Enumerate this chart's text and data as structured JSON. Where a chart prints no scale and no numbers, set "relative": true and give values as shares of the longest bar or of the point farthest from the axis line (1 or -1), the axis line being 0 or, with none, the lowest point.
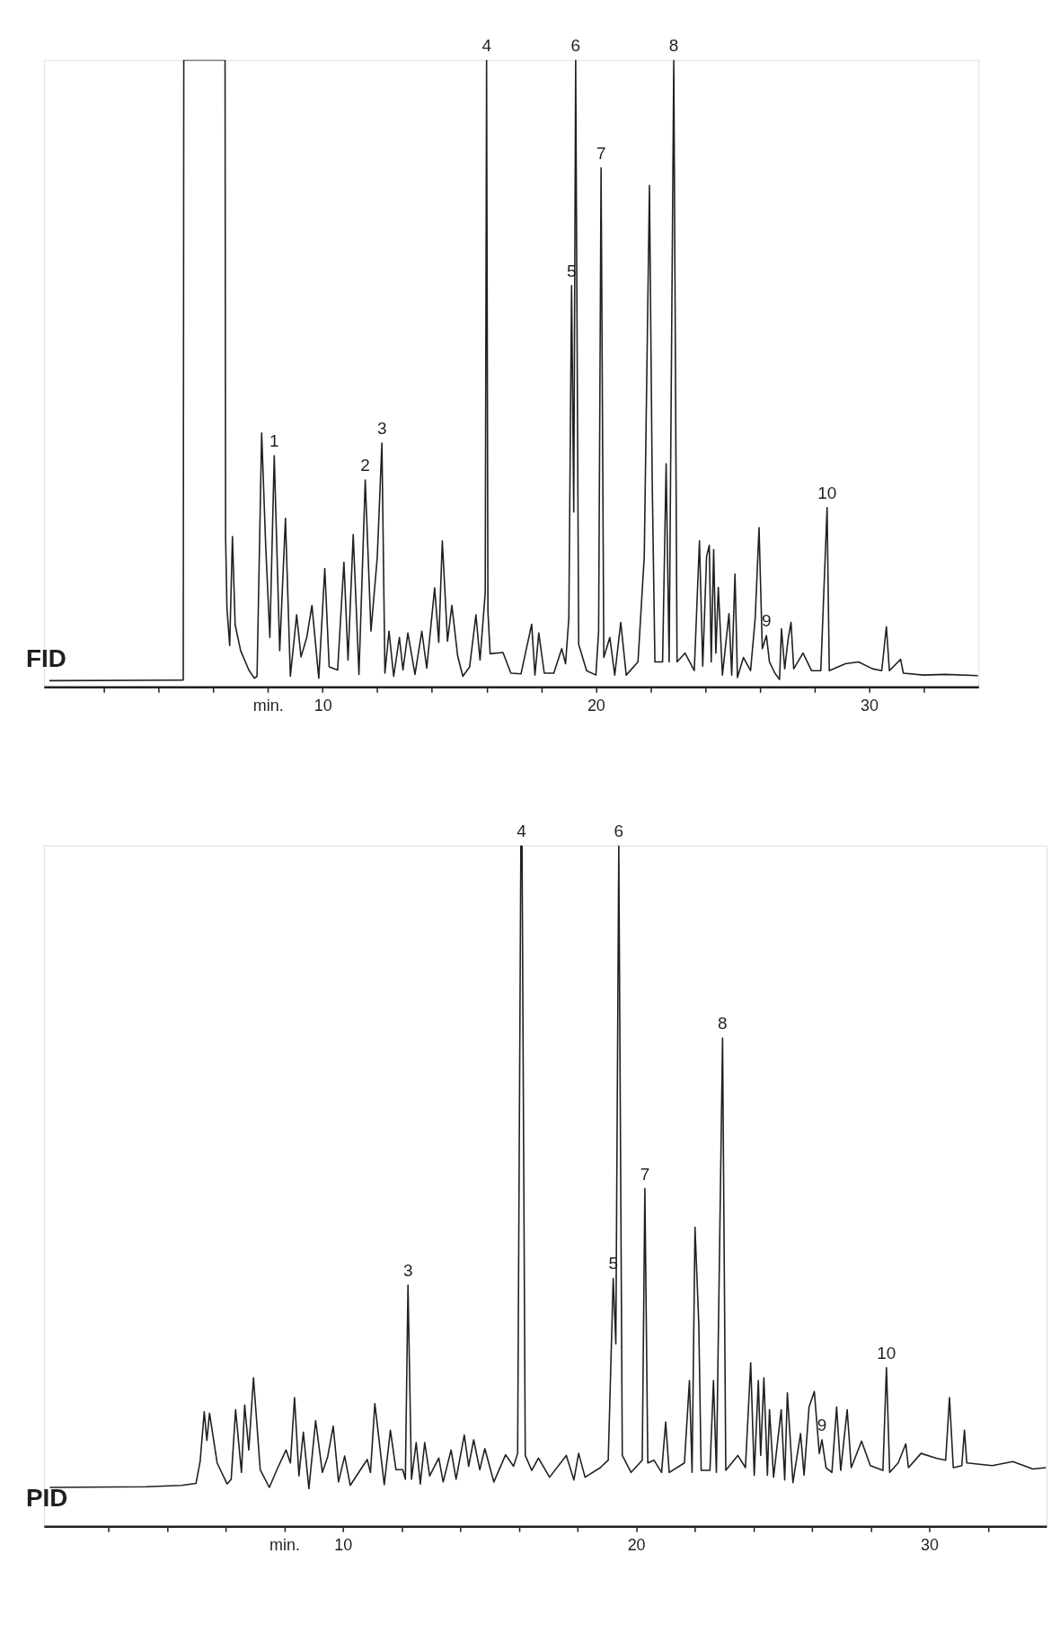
{
  "chart_data": [
    {
      "type": "line",
      "title": "FID",
      "relative": true,
      "color": "#231f20",
      "grid": false,
      "line_style": "solid",
      "marker": "none",
      "xlim": [
        -0.2,
        34
      ],
      "xticks": [
        {
          "value": 2,
          "label": null
        },
        {
          "value": 4,
          "label": null
        },
        {
          "value": 6,
          "label": null
        },
        {
          "value": 8,
          "label": "min."
        },
        10,
        {
          "value": 12,
          "label": null
        },
        {
          "value": 14,
          "label": null
        },
        {
          "value": 16,
          "label": null
        },
        {
          "value": 18,
          "label": null
        },
        20,
        {
          "value": 22,
          "label": null
        },
        {
          "value": 24,
          "label": null
        },
        {
          "value": 26,
          "label": null
        },
        {
          "value": 28,
          "label": null
        },
        30,
        {
          "value": 32,
          "label": null
        }
      ],
      "x": [
        0.0,
        4.84,
        4.9,
        4.92,
        6.43,
        6.45,
        6.5,
        6.6,
        6.7,
        6.8,
        7.0,
        7.3,
        7.5,
        7.6,
        7.77,
        7.92,
        8.07,
        8.23,
        8.43,
        8.64,
        8.82,
        9.05,
        9.21,
        9.42,
        9.61,
        9.86,
        10.08,
        10.24,
        10.55,
        10.78,
        10.93,
        11.12,
        11.33,
        11.56,
        11.77,
        12.0,
        12.17,
        12.28,
        12.43,
        12.6,
        12.81,
        12.94,
        13.12,
        13.38,
        13.63,
        13.81,
        14.1,
        14.25,
        14.38,
        14.57,
        14.73,
        14.94,
        15.13,
        15.38,
        15.61,
        15.76,
        15.95,
        16.0,
        16.05,
        16.13,
        16.6,
        16.89,
        17.26,
        17.65,
        17.77,
        17.91,
        18.11,
        18.46,
        18.75,
        18.89,
        19.01,
        19.11,
        19.19,
        19.26,
        19.37,
        19.66,
        20.0,
        20.1,
        20.19,
        20.29,
        20.51,
        20.69,
        20.91,
        21.11,
        21.54,
        21.77,
        21.96,
        22.06,
        22.16,
        22.44,
        22.57,
        22.68,
        22.85,
        22.97,
        23.26,
        23.6,
        23.79,
        23.91,
        24.05,
        24.15,
        24.22,
        24.31,
        24.39,
        24.48,
        24.63,
        24.87,
        24.97,
        25.09,
        25.18,
        25.4,
        25.66,
        25.83,
        25.97,
        26.09,
        26.24,
        26.35,
        26.55,
        26.72,
        26.79,
        26.91,
        27.03,
        27.14,
        27.24,
        27.58,
        27.89,
        28.23,
        28.46,
        28.54,
        29.13,
        29.61,
        30.12,
        30.46,
        30.63,
        30.74,
        31.15,
        31.25,
        32.0,
        32.78,
        33.98
      ],
      "values": [
        0.01,
        0.011,
        0.011,
        1.0,
        1.0,
        0.238,
        0.125,
        0.066,
        0.24,
        0.099,
        0.058,
        0.027,
        0.014,
        0.017,
        0.405,
        0.222,
        0.079,
        0.369,
        0.058,
        0.269,
        0.017,
        0.115,
        0.048,
        0.079,
        0.13,
        0.014,
        0.189,
        0.032,
        0.027,
        0.199,
        0.043,
        0.243,
        0.02,
        0.33,
        0.089,
        0.207,
        0.389,
        0.022,
        0.089,
        0.017,
        0.079,
        0.027,
        0.086,
        0.02,
        0.089,
        0.03,
        0.158,
        0.071,
        0.233,
        0.073,
        0.13,
        0.05,
        0.017,
        0.032,
        0.115,
        0.043,
        0.15,
        1.0,
        0.12,
        0.053,
        0.055,
        0.022,
        0.021,
        0.1,
        0.019,
        0.086,
        0.022,
        0.022,
        0.061,
        0.037,
        0.11,
        0.64,
        0.279,
        1.0,
        0.068,
        0.026,
        0.019,
        0.089,
        0.828,
        0.047,
        0.079,
        0.019,
        0.103,
        0.019,
        0.04,
        0.208,
        0.8,
        0.331,
        0.04,
        0.04,
        0.356,
        0.04,
        1.0,
        0.04,
        0.054,
        0.026,
        0.233,
        0.033,
        0.208,
        0.226,
        0.04,
        0.219,
        0.054,
        0.159,
        0.019,
        0.117,
        0.019,
        0.18,
        0.015,
        0.047,
        0.026,
        0.11,
        0.254,
        0.061,
        0.082,
        0.04,
        0.022,
        0.012,
        0.093,
        0.029,
        0.075,
        0.103,
        0.029,
        0.054,
        0.026,
        0.026,
        0.286,
        0.026,
        0.037,
        0.04,
        0.029,
        0.026,
        0.096,
        0.026,
        0.044,
        0.022,
        0.019,
        0.02,
        0.018
      ],
      "annotations": [
        {
          "text": "1",
          "x": 8.23,
          "y": 0.369
        },
        {
          "text": "2",
          "x": 11.56,
          "y": 0.33
        },
        {
          "text": "3",
          "x": 12.17,
          "y": 0.389
        },
        {
          "text": "4",
          "x": 16.0,
          "y": 1.0
        },
        {
          "text": "5",
          "x": 19.11,
          "y": 0.64
        },
        {
          "text": "6",
          "x": 19.26,
          "y": 1.0
        },
        {
          "text": "7",
          "x": 20.19,
          "y": 0.828
        },
        {
          "text": "8",
          "x": 22.85,
          "y": 1.0
        },
        {
          "text": "9",
          "x": 26.24,
          "y": 0.082
        },
        {
          "text": "10",
          "x": 28.46,
          "y": 0.286
        }
      ]
    },
    {
      "type": "line",
      "title": "PID",
      "relative": true,
      "color": "#231f20",
      "grid": false,
      "line_style": "solid",
      "marker": "none",
      "xlim": [
        -0.2,
        34
      ],
      "xticks": [
        {
          "value": 2,
          "label": null
        },
        {
          "value": 4,
          "label": null
        },
        {
          "value": 6,
          "label": null
        },
        {
          "value": 8,
          "label": "min."
        },
        10,
        {
          "value": 12,
          "label": null
        },
        {
          "value": 14,
          "label": null
        },
        {
          "value": 16,
          "label": null
        },
        {
          "value": 18,
          "label": null
        },
        20,
        {
          "value": 22,
          "label": null
        },
        {
          "value": 24,
          "label": null
        },
        {
          "value": 26,
          "label": null
        },
        {
          "value": 28,
          "label": null
        },
        30,
        {
          "value": 32,
          "label": null
        }
      ],
      "x": [
        0.0,
        3.28,
        4.49,
        4.99,
        5.13,
        5.27,
        5.36,
        5.45,
        5.71,
        6.05,
        6.19,
        6.34,
        6.54,
        6.65,
        6.79,
        6.95,
        7.18,
        7.49,
        7.78,
        8.06,
        8.21,
        8.35,
        8.5,
        8.65,
        8.84,
        9.07,
        9.3,
        9.48,
        9.67,
        9.85,
        10.06,
        10.25,
        10.6,
        10.83,
        10.94,
        11.09,
        11.41,
        11.62,
        11.81,
        12.04,
        12.13,
        12.22,
        12.34,
        12.5,
        12.64,
        12.79,
        12.96,
        13.27,
        13.42,
        13.69,
        13.86,
        14.14,
        14.29,
        14.46,
        14.67,
        14.84,
        15.15,
        15.55,
        15.82,
        15.96,
        16.07,
        16.11,
        16.22,
        16.44,
        16.67,
        17.05,
        17.62,
        17.88,
        18.04,
        18.26,
        18.78,
        19.05,
        19.22,
        19.31,
        19.41,
        19.53,
        19.83,
        20.21,
        20.3,
        20.4,
        20.61,
        20.87,
        21.01,
        21.13,
        21.65,
        21.82,
        21.91,
        22.01,
        22.14,
        22.22,
        22.52,
        22.64,
        22.74,
        22.95,
        23.06,
        23.47,
        23.73,
        23.91,
        24.03,
        24.17,
        24.25,
        24.36,
        24.48,
        24.55,
        24.69,
        24.95,
        25.07,
        25.16,
        25.35,
        25.61,
        25.73,
        25.9,
        26.08,
        26.25,
        26.34,
        26.48,
        26.68,
        26.84,
        26.98,
        27.2,
        27.34,
        27.69,
        27.99,
        28.42,
        28.54,
        28.65,
        28.94,
        29.2,
        29.29,
        29.72,
        30.24,
        30.56,
        30.69,
        30.82,
        31.11,
        31.2,
        31.28,
        32.15,
        32.85,
        33.54,
        33.98
      ],
      "values": [
        0.057,
        0.058,
        0.06,
        0.063,
        0.095,
        0.168,
        0.126,
        0.166,
        0.093,
        0.062,
        0.069,
        0.171,
        0.079,
        0.178,
        0.112,
        0.218,
        0.083,
        0.057,
        0.086,
        0.112,
        0.093,
        0.189,
        0.074,
        0.138,
        0.055,
        0.155,
        0.079,
        0.102,
        0.147,
        0.065,
        0.103,
        0.06,
        0.083,
        0.098,
        0.079,
        0.18,
        0.061,
        0.141,
        0.083,
        0.083,
        0.069,
        0.354,
        0.069,
        0.123,
        0.062,
        0.123,
        0.074,
        0.1,
        0.065,
        0.112,
        0.069,
        0.134,
        0.088,
        0.127,
        0.083,
        0.114,
        0.065,
        0.105,
        0.088,
        0.107,
        1.0,
        1.0,
        0.104,
        0.082,
        0.1,
        0.072,
        0.104,
        0.068,
        0.107,
        0.072,
        0.086,
        0.097,
        0.364,
        0.268,
        1.0,
        0.104,
        0.079,
        0.097,
        0.496,
        0.093,
        0.097,
        0.079,
        0.153,
        0.079,
        0.093,
        0.214,
        0.079,
        0.439,
        0.296,
        0.082,
        0.082,
        0.214,
        0.079,
        0.717,
        0.082,
        0.104,
        0.086,
        0.24,
        0.075,
        0.214,
        0.104,
        0.218,
        0.075,
        0.171,
        0.072,
        0.171,
        0.068,
        0.196,
        0.064,
        0.136,
        0.075,
        0.175,
        0.198,
        0.107,
        0.127,
        0.086,
        0.079,
        0.175,
        0.082,
        0.171,
        0.086,
        0.125,
        0.089,
        0.082,
        0.233,
        0.079,
        0.093,
        0.121,
        0.086,
        0.107,
        0.1,
        0.097,
        0.189,
        0.086,
        0.089,
        0.141,
        0.093,
        0.089,
        0.095,
        0.084,
        0.086
      ],
      "annotations": [
        {
          "text": "3",
          "x": 12.22,
          "y": 0.354
        },
        {
          "text": "4",
          "x": 16.09,
          "y": 1.0
        },
        {
          "text": "5",
          "x": 19.22,
          "y": 0.364
        },
        {
          "text": "6",
          "x": 19.41,
          "y": 1.0
        },
        {
          "text": "7",
          "x": 20.3,
          "y": 0.496
        },
        {
          "text": "8",
          "x": 22.95,
          "y": 0.717
        },
        {
          "text": "9",
          "x": 26.34,
          "y": 0.127
        },
        {
          "text": "10",
          "x": 28.54,
          "y": 0.233
        }
      ]
    }
  ]
}
